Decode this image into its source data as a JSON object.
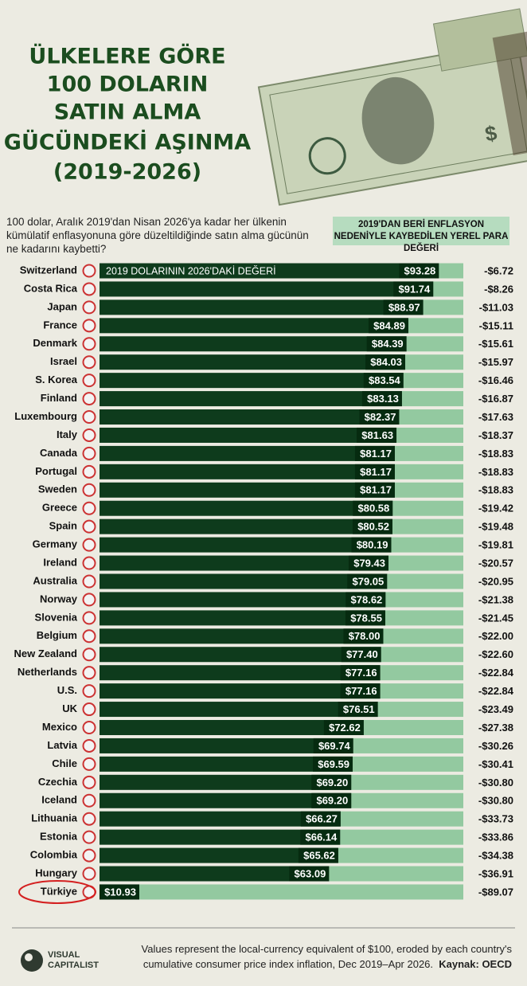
{
  "chart_data": {
    "type": "bar",
    "title": [
      "ÜLKELERE GÖRE",
      "100 DOLARIN",
      "SATIN ALMA",
      "GÜCÜNDEKİ AŞINMA",
      "(2019-2026)"
    ],
    "subtitle": "100 dolar, Aralık 2019'dan Nisan 2026'ya kadar her ülkenin kümülatif enflasyonuna göre düzeltildiğinde satın alma gücünün ne kadarını kaybetti?",
    "categories": [
      "Switzerland",
      "Costa Rica",
      "Japan",
      "France",
      "Denmark",
      "Israel",
      "S. Korea",
      "Finland",
      "Luxembourg",
      "Italy",
      "Canada",
      "Portugal",
      "Sweden",
      "Greece",
      "Spain",
      "Germany",
      "Ireland",
      "Australia",
      "Norway",
      "Slovenia",
      "Belgium",
      "New Zealand",
      "Netherlands",
      "U.S.",
      "UK",
      "Mexico",
      "Latvia",
      "Chile",
      "Czechia",
      "Iceland",
      "Lithuania",
      "Estonia",
      "Colombia",
      "Hungary",
      "Türkiye"
    ],
    "series": [
      {
        "name": "2019 DOLARININ 2026'DAKİ DEĞERİ",
        "color": "#0e3b1c",
        "values": [
          93.28,
          91.74,
          88.97,
          84.89,
          84.39,
          84.03,
          83.54,
          83.13,
          82.37,
          81.63,
          81.17,
          81.17,
          81.17,
          80.58,
          80.52,
          80.19,
          79.43,
          79.05,
          78.62,
          78.55,
          78.0,
          77.4,
          77.16,
          77.16,
          76.51,
          72.62,
          69.74,
          69.59,
          69.2,
          69.2,
          66.27,
          66.14,
          65.62,
          63.09,
          10.93
        ],
        "value_labels": [
          "$93.28",
          "$91.74",
          "$88.97",
          "$84.89",
          "$84.39",
          "$84.03",
          "$83.54",
          "$83.13",
          "$82.37",
          "$81.63",
          "$81.17",
          "$81.17",
          "$81.17",
          "$80.58",
          "$80.52",
          "$80.19",
          "$79.43",
          "$79.05",
          "$78.62",
          "$78.55",
          "$78.00",
          "$77.40",
          "$77.16",
          "$77.16",
          "$76.51",
          "$72.62",
          "$69.74",
          "$69.59",
          "$69.20",
          "$69.20",
          "$66.27",
          "$66.14",
          "$65.62",
          "$63.09",
          "$10.93"
        ]
      },
      {
        "name": "2019'DAN BERİ ENFLASYON NEDENİYLE KAYBEDİLEN YEREL PARA DEĞERİ",
        "color": "#93c9a0",
        "values": [
          -6.72,
          -8.26,
          -11.03,
          -15.11,
          -15.61,
          -15.97,
          -16.46,
          -16.87,
          -17.63,
          -18.37,
          -18.83,
          -18.83,
          -18.83,
          -19.42,
          -19.48,
          -19.81,
          -20.57,
          -20.95,
          -21.38,
          -21.45,
          -22.0,
          -22.6,
          -22.84,
          -22.84,
          -23.49,
          -27.38,
          -30.26,
          -30.41,
          -30.8,
          -30.8,
          -33.73,
          -33.86,
          -34.38,
          -36.91,
          -89.07
        ],
        "value_labels": [
          "-$6.72",
          "-$8.26",
          "-$11.03",
          "-$15.11",
          "-$15.61",
          "-$15.97",
          "-$16.46",
          "-$16.87",
          "-$17.63",
          "-$18.37",
          "-$18.83",
          "-$18.83",
          "-$18.83",
          "-$19.42",
          "-$19.48",
          "-$19.81",
          "-$20.57",
          "-$20.95",
          "-$21.38",
          "-$21.45",
          "-$22.00",
          "-$22.60",
          "-$22.84",
          "-$22.84",
          "-$23.49",
          "-$27.38",
          "-$30.26",
          "-$30.41",
          "-$30.80",
          "-$30.80",
          "-$33.73",
          "-$33.86",
          "-$34.38",
          "-$36.91",
          "-$89.07"
        ]
      }
    ],
    "xlim": [
      0,
      100
    ],
    "note": "Values represent the local-currency equivalent of $100, eroded by each country's cumulative consumer price index inflation, Dec 2019–Apr 2026.",
    "source": "Kaynak: OECD",
    "brand": [
      "VISUAL",
      "CAPITALIST"
    ]
  }
}
